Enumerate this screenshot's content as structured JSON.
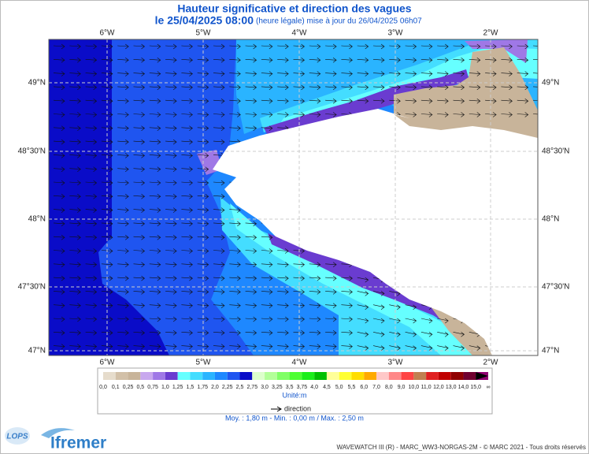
{
  "header": {
    "title": "Hauteur significative et direction des vagues",
    "date": "le 25/04/2025 08:00",
    "note": "(heure légale) mise à jour du 26/04/2025 06h07"
  },
  "map": {
    "longitude_labels": [
      "6°W",
      "5°W",
      "4°W",
      "3°W",
      "2°W"
    ],
    "latitude_labels": [
      "49°N",
      "48°30'N",
      "48°N",
      "47°30'N",
      "47°N"
    ]
  },
  "legend": {
    "labels": [
      "0,0",
      "0,1",
      "0,25",
      "0,5",
      "0,75",
      "1,0",
      "1,25",
      "1,5",
      "1,75",
      "2,0",
      "2,25",
      "2,5",
      "2,75",
      "3,0",
      "3,25",
      "3,5",
      "3,75",
      "4,0",
      "4,5",
      "5,0",
      "5,5",
      "6,0",
      "7,0",
      "8,0",
      "9,0",
      "10,0",
      "11,0",
      "12,0",
      "13,0",
      "14,0",
      "15,0",
      "∞"
    ],
    "colors": [
      "#e6dccc",
      "#d2c0a8",
      "#c8b49a",
      "#c8a8ee",
      "#9f78e6",
      "#6a3cd0",
      "#66ffff",
      "#44ddff",
      "#2ab4ff",
      "#1e88ff",
      "#1f55f0",
      "#0a0cc8",
      "#ddffcc",
      "#b3ff99",
      "#80ff66",
      "#4dff33",
      "#1aee1a",
      "#00c000",
      "#ffff99",
      "#ffff33",
      "#ffdd00",
      "#ffaa00",
      "#ffc8c8",
      "#ff8888",
      "#ff4444",
      "#c08050",
      "#e02020",
      "#c00000",
      "#900000",
      "#700030",
      "#900070"
    ],
    "unit": "Unité:m",
    "direction": "direction",
    "stats": "Moy. : 1,80 m   -   Min. : 0,00 m / Max. : 2,50 m"
  },
  "logos": {
    "lops": "LOPS",
    "ifremer": "Ifremer"
  },
  "footer": "WAVEWATCH III (R) - MARC_WW3-NORGAS-2M - © MARC 2021 - Tous droits réservés"
}
